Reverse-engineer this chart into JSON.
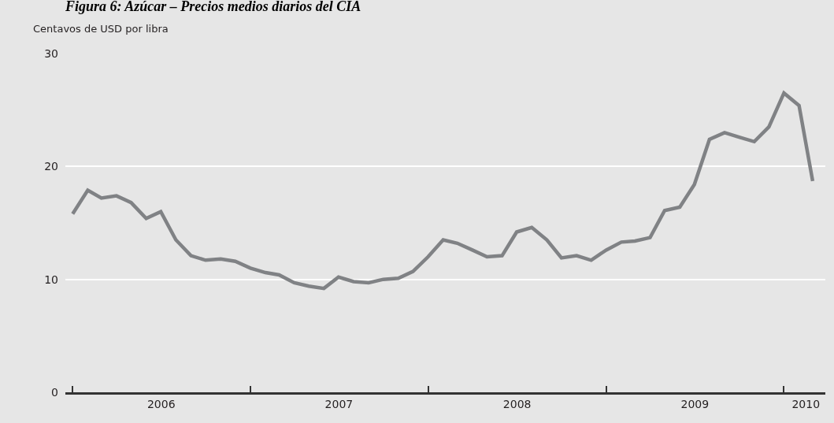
{
  "chart_data": {
    "type": "line",
    "title": "Figura 6: Azúcar – Precios medios diarios del CIA",
    "ylabel": "Centavos de USD por libra",
    "x": [
      "2006-01",
      "2006-02",
      "2006-03",
      "2006-04",
      "2006-05",
      "2006-06",
      "2006-07",
      "2006-08",
      "2006-09",
      "2006-10",
      "2006-11",
      "2006-12",
      "2007-01",
      "2007-02",
      "2007-03",
      "2007-04",
      "2007-05",
      "2007-06",
      "2007-07",
      "2007-08",
      "2007-09",
      "2007-10",
      "2007-11",
      "2007-12",
      "2008-01",
      "2008-02",
      "2008-03",
      "2008-04",
      "2008-05",
      "2008-06",
      "2008-07",
      "2008-08",
      "2008-09",
      "2008-10",
      "2008-11",
      "2008-12",
      "2009-01",
      "2009-02",
      "2009-03",
      "2009-04",
      "2009-05",
      "2009-06",
      "2009-07",
      "2009-08",
      "2009-09",
      "2009-10",
      "2009-11",
      "2009-12",
      "2010-01",
      "2010-02",
      "2010-03"
    ],
    "series": [
      {
        "color": "#808285",
        "values": [
          15.8,
          17.9,
          17.2,
          17.4,
          16.8,
          15.4,
          16.0,
          13.5,
          12.1,
          11.7,
          11.8,
          11.6,
          11.0,
          10.6,
          10.4,
          9.7,
          9.4,
          9.2,
          10.2,
          9.8,
          9.7,
          10.0,
          10.1,
          10.7,
          12.0,
          13.5,
          13.2,
          12.6,
          12.0,
          12.1,
          14.2,
          14.6,
          13.5,
          11.9,
          12.1,
          11.7,
          12.6,
          13.3,
          13.4,
          13.7,
          16.1,
          16.4,
          18.4,
          22.4,
          23.0,
          22.6,
          22.2,
          23.5,
          26.5,
          25.4,
          18.7
        ]
      }
    ],
    "ylim": [
      0,
      30
    ],
    "yticks": [
      0,
      10,
      20,
      30
    ],
    "xlim": [
      "2005-12-17",
      "2010-03-27"
    ],
    "xticks": [
      {
        "value": "2006-01-01",
        "label": null
      },
      {
        "value": "2006-07-02",
        "label": "2006"
      },
      {
        "value": "2007-01-01",
        "label": null
      },
      {
        "value": "2007-07-02",
        "label": "2007"
      },
      {
        "value": "2008-01-01",
        "label": null
      },
      {
        "value": "2008-07-02",
        "label": "2008"
      },
      {
        "value": "2009-01-01",
        "label": null
      },
      {
        "value": "2009-07-02",
        "label": "2009"
      },
      {
        "value": "2010-01-01",
        "label": null
      },
      {
        "value": "2010-02-15",
        "label": "2010"
      }
    ],
    "grid": "y",
    "marker": "none",
    "line_style": "solid"
  }
}
